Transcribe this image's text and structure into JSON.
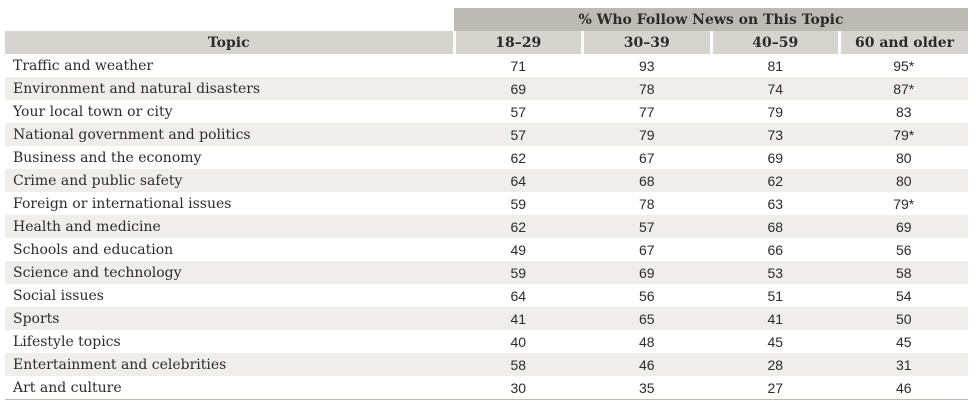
{
  "table": {
    "group_header": "% Who Follow News on This Topic",
    "columns": [
      "Topic",
      "18–29",
      "30–39",
      "40–59",
      "60 and older"
    ],
    "rows": [
      [
        "Traffic and weather",
        "71",
        "93",
        "81",
        "95*"
      ],
      [
        "Environment and natural disasters",
        "69",
        "78",
        "74",
        "87*"
      ],
      [
        "Your local town or city",
        "57",
        "77",
        "79",
        "83"
      ],
      [
        "National government and politics",
        "57",
        "79",
        "73",
        "79*"
      ],
      [
        "Business and the economy",
        "62",
        "67",
        "69",
        "80"
      ],
      [
        "Crime and public safety",
        "64",
        "68",
        "62",
        "80"
      ],
      [
        "Foreign or international issues",
        "59",
        "78",
        "63",
        "79*"
      ],
      [
        "Health and medicine",
        "62",
        "57",
        "68",
        "69"
      ],
      [
        "Schools and education",
        "49",
        "67",
        "66",
        "56"
      ],
      [
        "Science and technology",
        "59",
        "69",
        "53",
        "58"
      ],
      [
        "Social issues",
        "64",
        "56",
        "51",
        "54"
      ],
      [
        "Sports",
        "41",
        "65",
        "41",
        "50"
      ],
      [
        "Lifestyle topics",
        "40",
        "48",
        "45",
        "45"
      ],
      [
        "Entertainment and celebrities",
        "58",
        "46",
        "28",
        "31"
      ],
      [
        "Art and culture",
        "30",
        "35",
        "27",
        "46"
      ]
    ]
  },
  "colors": {
    "group_header_bg": "#bdbab4",
    "header_bg": "#d6d4cf",
    "stripe_bg": "#efeeeb"
  }
}
